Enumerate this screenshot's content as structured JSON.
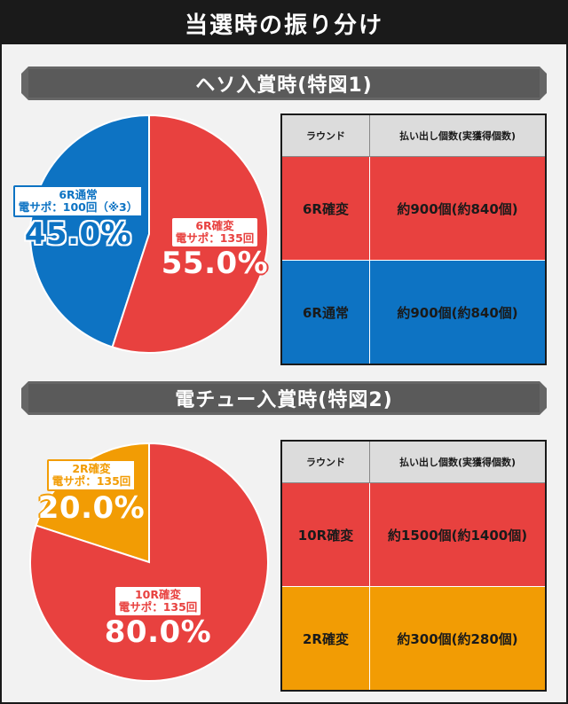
{
  "page_title": "当選時の振り分け",
  "colors": {
    "kakuhen": "#e8413f",
    "tsujo": "#0d73c3",
    "orange": "#f29c04",
    "dark": "#1a1a1a"
  },
  "sections": [
    {
      "title": "ヘソ入賞時(特図1)",
      "slices": [
        {
          "tag_line1": "6R通常",
          "tag_line2": "電サポ：100回（※3）",
          "pct": "45.0%"
        },
        {
          "tag_line1": "6R確変",
          "tag_line2": "電サポ：135回",
          "pct": "55.0%"
        }
      ],
      "table": {
        "headers": [
          "ラウンド",
          "払い出し個数(実獲得個数)"
        ],
        "rows": [
          {
            "round": "6R確変",
            "payout": "約900個(約840個)"
          },
          {
            "round": "6R通常",
            "payout": "約900個(約840個)"
          }
        ]
      }
    },
    {
      "title": "電チュー入賞時(特図2)",
      "slices": [
        {
          "tag_line1": "2R確変",
          "tag_line2": "電サポ：135回",
          "pct": "20.0%"
        },
        {
          "tag_line1": "10R確変",
          "tag_line2": "電サポ：135回",
          "pct": "80.0%"
        }
      ],
      "table": {
        "headers": [
          "ラウンド",
          "払い出し個数(実獲得個数)"
        ],
        "rows": [
          {
            "round": "10R確変",
            "payout": "約1500個(約1400個)"
          },
          {
            "round": "2R確変",
            "payout": "約300個(約280個)"
          }
        ]
      }
    }
  ],
  "chart_data": [
    {
      "type": "pie",
      "title": "ヘソ入賞時(特図1)",
      "labels": [
        "6R通常 電サポ：100回（※3）",
        "6R確変 電サポ：135回"
      ],
      "values": [
        45.0,
        55.0
      ],
      "colors": [
        "#0d73c3",
        "#e8413f"
      ]
    },
    {
      "type": "pie",
      "title": "電チュー入賞時(特図2)",
      "labels": [
        "2R確変 電サポ：135回",
        "10R確変 電サポ：135回"
      ],
      "values": [
        20.0,
        80.0
      ],
      "colors": [
        "#f29c04",
        "#e8413f"
      ]
    }
  ]
}
